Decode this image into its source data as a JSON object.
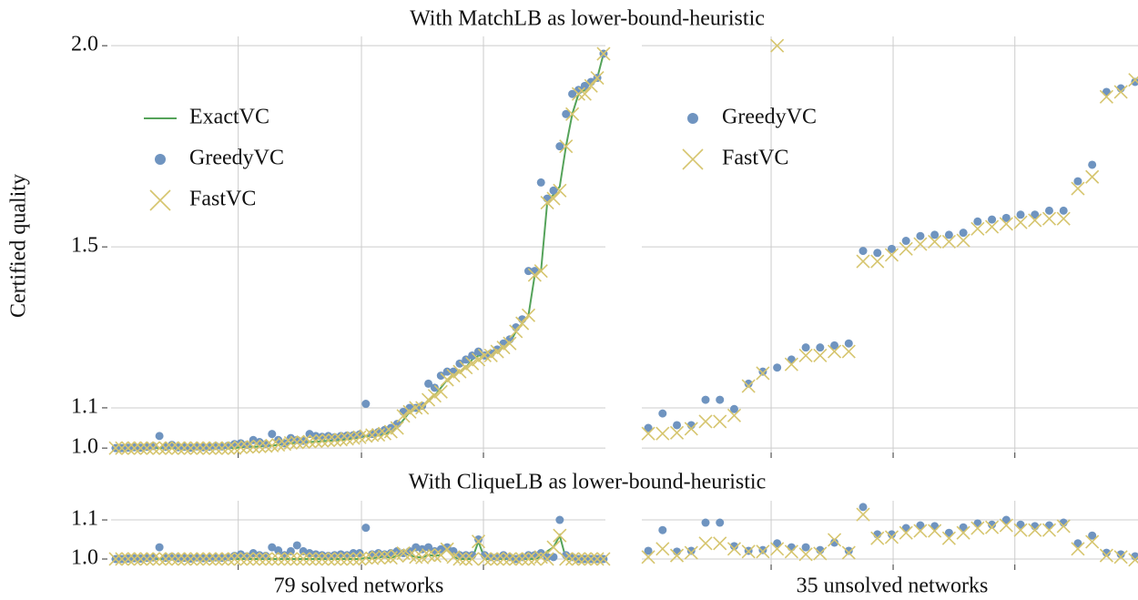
{
  "chart_data": [
    {
      "type": "scatter",
      "title": "With MatchLB as lower-bound-heuristic",
      "ylabel": "Certified quality",
      "legend": "upper left",
      "grid": true,
      "xlim": [
        -0.73,
        78.3
      ],
      "xticks": [
        19.6,
        39.3,
        58.8
      ],
      "ylim": [
        0.989,
        2.023
      ],
      "yticks": [
        {
          "value": 1.0,
          "label": "1.0"
        },
        {
          "value": 1.1,
          "label": "1.1"
        },
        {
          "value": 1.5,
          "label": "1.5"
        },
        {
          "value": 2.0,
          "label": "2.0"
        }
      ],
      "series": [
        {
          "name": "ExactVC",
          "marker": "line",
          "color": "#55a35a",
          "values": [
            1.0,
            1.0,
            1.0,
            1.0,
            1.0,
            1.0,
            1.0,
            1.0,
            1.0,
            1.0,
            1.0,
            1.0,
            1.0,
            1.0,
            1.0,
            1.0,
            1.0,
            1.0,
            1.0,
            1.0,
            1.002,
            1.003,
            1.003,
            1.004,
            1.005,
            1.006,
            1.008,
            1.01,
            1.012,
            1.013,
            1.014,
            1.015,
            1.016,
            1.017,
            1.018,
            1.019,
            1.02,
            1.022,
            1.024,
            1.026,
            1.03,
            1.03,
            1.031,
            1.035,
            1.04,
            1.05,
            1.07,
            1.09,
            1.095,
            1.1,
            1.12,
            1.13,
            1.15,
            1.17,
            1.18,
            1.19,
            1.2,
            1.22,
            1.23,
            1.23,
            1.23,
            1.24,
            1.25,
            1.26,
            1.29,
            1.31,
            1.33,
            1.43,
            1.44,
            1.61,
            1.63,
            1.65,
            1.75,
            1.83,
            1.88,
            1.89,
            1.91,
            1.92,
            1.98
          ]
        },
        {
          "name": "GreedyVC",
          "marker": "o",
          "color": "#6f94c0",
          "values": [
            1.0,
            1.0,
            1.001,
            1.002,
            1.001,
            1.003,
            1.005,
            1.03,
            1.003,
            1.008,
            1.002,
            1.003,
            1.001,
            1.004,
            1.002,
            1.003,
            1.005,
            1.004,
            1.006,
            1.01,
            1.012,
            1.008,
            1.02,
            1.015,
            1.01,
            1.035,
            1.02,
            1.012,
            1.025,
            1.02,
            1.018,
            1.035,
            1.03,
            1.028,
            1.03,
            1.027,
            1.03,
            1.031,
            1.032,
            1.034,
            1.11,
            1.035,
            1.04,
            1.045,
            1.05,
            1.06,
            1.09,
            1.1,
            1.1,
            1.105,
            1.16,
            1.15,
            1.18,
            1.19,
            1.19,
            1.21,
            1.22,
            1.23,
            1.24,
            1.23,
            1.235,
            1.245,
            1.26,
            1.27,
            1.3,
            1.32,
            1.44,
            1.44,
            1.66,
            1.62,
            1.64,
            1.75,
            1.83,
            1.88,
            1.89,
            1.9,
            1.91,
            1.92,
            1.98
          ]
        },
        {
          "name": "FastVC",
          "marker": "x",
          "color": "#d6c56e",
          "values": [
            1.0,
            1.0,
            1.0,
            1.0,
            1.0,
            1.0,
            1.0,
            1.0,
            1.0,
            1.0,
            1.0,
            1.0,
            1.0,
            1.0,
            1.0,
            1.0,
            1.0,
            1.0,
            1.0,
            1.0,
            1.002,
            1.003,
            1.003,
            1.004,
            1.005,
            1.006,
            1.008,
            1.01,
            1.013,
            1.014,
            1.015,
            1.016,
            1.017,
            1.018,
            1.019,
            1.02,
            1.021,
            1.023,
            1.025,
            1.027,
            1.03,
            1.032,
            1.033,
            1.036,
            1.041,
            1.05,
            1.08,
            1.09,
            1.1,
            1.1,
            1.12,
            1.13,
            1.14,
            1.17,
            1.18,
            1.19,
            1.2,
            1.21,
            1.22,
            1.23,
            1.23,
            1.24,
            1.25,
            1.26,
            1.29,
            1.31,
            1.33,
            1.43,
            1.44,
            1.61,
            1.62,
            1.64,
            1.75,
            1.83,
            1.88,
            1.88,
            1.9,
            1.92,
            1.98
          ]
        }
      ]
    },
    {
      "type": "scatter",
      "legend": "upper left",
      "grid": true,
      "xlim": [
        -0.45,
        34.2
      ],
      "xticks": [
        8.58,
        17.1,
        25.6
      ],
      "ylim": [
        0.989,
        2.023
      ],
      "yticks": [
        1.0,
        1.1,
        1.5,
        2.0
      ],
      "series": [
        {
          "name": "GreedyVC",
          "marker": "o",
          "color": "#6f94c0",
          "values": [
            1.05,
            1.086,
            1.057,
            1.057,
            1.12,
            1.12,
            1.097,
            1.16,
            1.19,
            1.2,
            1.22,
            1.25,
            1.25,
            1.255,
            1.26,
            1.49,
            1.485,
            1.495,
            1.515,
            1.527,
            1.53,
            1.53,
            1.535,
            1.563,
            1.568,
            1.572,
            1.58,
            1.58,
            1.59,
            1.59,
            1.663,
            1.704,
            1.885,
            1.894,
            1.91
          ]
        },
        {
          "name": "FastVC",
          "marker": "x",
          "color": "#d6c56e",
          "values": [
            1.036,
            1.036,
            1.038,
            1.048,
            1.066,
            1.066,
            1.081,
            1.154,
            1.186,
            2.0,
            1.208,
            1.23,
            1.23,
            1.24,
            1.24,
            1.464,
            1.464,
            1.48,
            1.495,
            1.507,
            1.513,
            1.513,
            1.516,
            1.545,
            1.55,
            1.557,
            1.561,
            1.566,
            1.57,
            1.57,
            1.645,
            1.674,
            1.873,
            1.885,
            1.915
          ]
        }
      ]
    },
    {
      "type": "scatter",
      "title": "With CliqueLB as lower-bound-heuristic",
      "xlabel": "79 solved networks",
      "grid": true,
      "xlim": [
        -0.73,
        78.3
      ],
      "xticks": [
        19.6,
        39.3,
        58.8
      ],
      "ylim": [
        0.986,
        1.149
      ],
      "yticks": [
        {
          "value": 1.0,
          "label": "1.0"
        },
        {
          "value": 1.1,
          "label": "1.1"
        }
      ],
      "series": [
        {
          "name": "ExactVC",
          "marker": "line",
          "color": "#55a35a",
          "values": [
            1.0,
            1.0,
            1.0,
            1.0,
            1.0,
            1.0,
            1.0,
            1.0,
            1.0,
            1.0,
            1.0,
            1.0,
            1.0,
            1.0,
            1.0,
            1.0,
            1.0,
            1.0,
            1.0,
            1.0,
            1.0,
            1.0,
            1.0,
            1.0,
            1.0,
            1.0,
            1.0,
            1.0,
            1.0,
            1.0,
            1.0,
            1.0,
            1.0,
            1.0,
            1.0,
            1.0,
            1.0,
            1.0,
            1.0,
            1.0,
            1.003,
            1.002,
            1.004,
            1.006,
            1.003,
            1.008,
            1.015,
            1.01,
            1.005,
            1.004,
            1.01,
            1.008,
            1.01,
            1.025,
            1.005,
            1.0,
            1.0,
            1.0,
            1.045,
            1.0,
            1.0,
            1.0,
            1.0,
            1.0,
            1.0,
            1.0,
            1.0,
            1.0,
            1.005,
            1.02,
            1.03,
            1.06,
            1.0,
            1.0,
            1.0,
            1.0,
            1.0,
            1.0,
            1.0
          ]
        },
        {
          "name": "GreedyVC",
          "marker": "o",
          "color": "#6f94c0",
          "values": [
            1.0,
            1.0,
            1.001,
            1.002,
            1.001,
            1.003,
            1.004,
            1.03,
            1.003,
            1.006,
            1.002,
            1.003,
            1.001,
            1.004,
            1.002,
            1.003,
            1.004,
            1.003,
            1.005,
            1.008,
            1.012,
            1.007,
            1.015,
            1.01,
            1.008,
            1.03,
            1.022,
            1.01,
            1.02,
            1.035,
            1.02,
            1.015,
            1.012,
            1.01,
            1.008,
            1.01,
            1.012,
            1.01,
            1.015,
            1.015,
            1.08,
            1.012,
            1.015,
            1.012,
            1.015,
            1.02,
            1.015,
            1.02,
            1.03,
            1.025,
            1.03,
            1.02,
            1.025,
            1.03,
            1.02,
            1.01,
            1.01,
            1.01,
            1.05,
            1.01,
            1.005,
            1.005,
            1.01,
            1.005,
            1.0,
            1.005,
            1.01,
            1.01,
            1.015,
            1.005,
            1.005,
            1.1,
            1.01,
            1.005,
            1.0,
            1.0,
            1.0,
            1.0,
            1.0
          ]
        },
        {
          "name": "FastVC",
          "marker": "x",
          "color": "#d6c56e",
          "values": [
            1.0,
            1.0,
            1.0,
            1.0,
            1.0,
            1.0,
            1.0,
            1.0,
            1.0,
            1.0,
            1.0,
            1.0,
            1.0,
            1.0,
            1.0,
            1.0,
            1.0,
            1.0,
            1.0,
            1.0,
            1.0,
            1.0,
            1.0,
            1.0,
            1.0,
            1.0,
            1.0,
            1.0,
            1.0,
            1.0,
            1.0,
            1.0,
            1.0,
            1.0,
            1.0,
            1.0,
            1.0,
            1.0,
            1.0,
            1.0,
            1.003,
            1.002,
            1.004,
            1.006,
            1.003,
            1.008,
            1.015,
            1.01,
            1.005,
            1.004,
            1.01,
            1.008,
            1.01,
            1.025,
            1.005,
            1.0,
            1.0,
            1.0,
            1.045,
            1.0,
            1.0,
            1.0,
            1.0,
            1.0,
            1.0,
            1.0,
            1.0,
            1.0,
            1.005,
            1.0,
            1.03,
            1.06,
            1.0,
            1.0,
            1.0,
            1.0,
            1.0,
            1.0,
            1.0
          ]
        }
      ]
    },
    {
      "type": "scatter",
      "xlabel": "35 unsolved networks",
      "grid": true,
      "xlim": [
        -0.45,
        34.2
      ],
      "xticks": [
        8.58,
        17.1,
        25.6
      ],
      "ylim": [
        0.986,
        1.149
      ],
      "yticks": [
        1.0,
        1.1
      ],
      "series": [
        {
          "name": "GreedyVC",
          "marker": "o",
          "color": "#6f94c0",
          "values": [
            1.021,
            1.074,
            1.019,
            1.021,
            1.093,
            1.093,
            1.033,
            1.021,
            1.023,
            1.04,
            1.03,
            1.03,
            1.023,
            1.042,
            1.021,
            1.133,
            1.063,
            1.063,
            1.079,
            1.086,
            1.084,
            1.067,
            1.081,
            1.091,
            1.088,
            1.1,
            1.088,
            1.084,
            1.086,
            1.093,
            1.04,
            1.06,
            1.016,
            1.012,
            1.007
          ]
        },
        {
          "name": "FastVC",
          "marker": "x",
          "color": "#d6c56e",
          "values": [
            1.005,
            1.026,
            1.009,
            1.016,
            1.04,
            1.04,
            1.026,
            1.019,
            1.019,
            1.026,
            1.019,
            1.012,
            1.014,
            1.049,
            1.016,
            1.114,
            1.053,
            1.056,
            1.067,
            1.072,
            1.072,
            1.053,
            1.067,
            1.079,
            1.081,
            1.086,
            1.074,
            1.074,
            1.074,
            1.084,
            1.026,
            1.044,
            1.009,
            1.005,
            0.998
          ]
        }
      ]
    }
  ]
}
